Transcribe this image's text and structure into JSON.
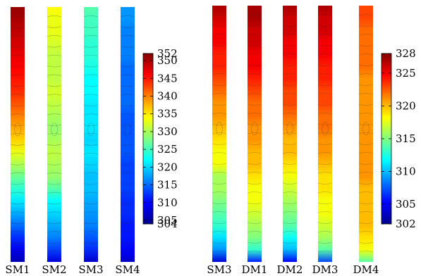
{
  "colors": {
    "colormap": [
      "#00008f",
      "#0000ff",
      "#0080ff",
      "#00ffff",
      "#80ff80",
      "#ffff00",
      "#ff8000",
      "#ff0000",
      "#800000"
    ]
  },
  "chart_data": [
    {
      "type": "heatmap",
      "columns": [
        "SM1",
        "SM2",
        "SM3",
        "SM4"
      ],
      "colorbar": {
        "min": 304,
        "max": 352,
        "ticks": [
          352,
          350,
          345,
          340,
          335,
          330,
          325,
          320,
          315,
          310,
          305,
          304
        ]
      },
      "series": [
        {
          "name": "SM1",
          "values_top_to_bottom": [
            351,
            350,
            349,
            348,
            347,
            346,
            345,
            344,
            342,
            340,
            338,
            336,
            333,
            330,
            327,
            324,
            321,
            318,
            315,
            312,
            309,
            306
          ]
        },
        {
          "name": "SM2",
          "values_top_to_bottom": [
            334,
            333,
            333,
            332,
            331,
            331,
            331,
            332,
            331,
            330,
            329,
            330,
            331,
            330,
            329,
            326,
            322,
            320,
            318,
            316,
            313,
            308
          ]
        },
        {
          "name": "SM3",
          "values_top_to_bottom": [
            326,
            325,
            325,
            324,
            324,
            323,
            322,
            322,
            321,
            321,
            321,
            320,
            321,
            320,
            319,
            319,
            318,
            317,
            316,
            314,
            312,
            307
          ]
        },
        {
          "name": "SM4",
          "values_top_to_bottom": [
            317,
            317,
            316,
            316,
            316,
            315,
            315,
            315,
            315,
            314,
            314,
            314,
            314,
            313,
            313,
            313,
            312,
            312,
            311,
            311,
            310,
            307
          ]
        }
      ]
    },
    {
      "type": "heatmap",
      "columns": [
        "SM3",
        "DM1",
        "DM2",
        "DM3",
        "DM4"
      ],
      "colorbar": {
        "min": 302,
        "max": 328,
        "ticks": [
          328,
          325,
          320,
          315,
          310,
          305,
          302
        ]
      },
      "series": [
        {
          "name": "SM3",
          "values_top_to_bottom": [
            327,
            326,
            325,
            325,
            324,
            324,
            323,
            322,
            321,
            321,
            320,
            319,
            318,
            318,
            316,
            316,
            315,
            314,
            313,
            311,
            309,
            304
          ]
        },
        {
          "name": "DM1",
          "values_top_to_bottom": [
            327,
            327,
            326,
            326,
            325,
            325,
            324,
            323,
            322,
            322,
            321,
            321,
            320,
            320,
            319,
            318,
            318,
            317,
            316,
            315,
            313,
            306
          ]
        },
        {
          "name": "DM2",
          "values_top_to_bottom": [
            327,
            326,
            326,
            325,
            325,
            324,
            324,
            323,
            323,
            322,
            321,
            320,
            320,
            319,
            318,
            317,
            316,
            315,
            314,
            312,
            310,
            305
          ]
        },
        {
          "name": "DM3",
          "values_top_to_bottom": [
            327,
            326,
            326,
            325,
            325,
            324,
            324,
            323,
            323,
            322,
            322,
            321,
            321,
            320,
            319,
            319,
            318,
            318,
            317,
            316,
            314,
            307
          ]
        },
        {
          "name": "DM4",
          "values_top_to_bottom": [
            323,
            323,
            322,
            322,
            322,
            322,
            321,
            321,
            321,
            321,
            321,
            321,
            321,
            321,
            321,
            320,
            320,
            320,
            320,
            319,
            318,
            314
          ]
        }
      ]
    }
  ]
}
